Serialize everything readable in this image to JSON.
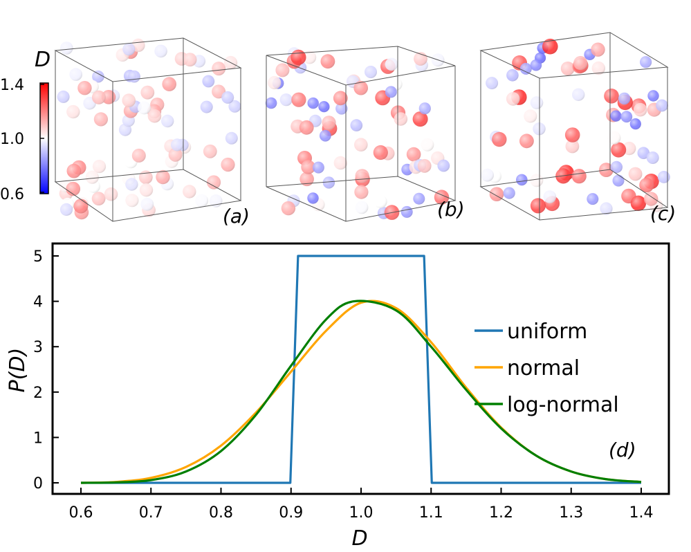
{
  "panels": {
    "a": "(a)",
    "b": "(b)",
    "c": "(c)",
    "d": "(d)"
  },
  "colorbar": {
    "title": "D",
    "ticks": [
      "1.4",
      "1.0",
      "0.6"
    ],
    "range": [
      0.6,
      1.4
    ],
    "colors": {
      "low": "#0000ff",
      "mid": "#ffffff",
      "high": "#ff0000"
    }
  },
  "chart_data": {
    "type": "line",
    "title": "",
    "xlabel": "D",
    "ylabel": "P(D)",
    "xlim": [
      0.6,
      1.4
    ],
    "ylim": [
      0,
      5
    ],
    "xticks": [
      "0.6",
      "0.7",
      "0.8",
      "0.9",
      "1.0",
      "1.1",
      "1.2",
      "1.3",
      "1.4"
    ],
    "yticks": [
      "0",
      "1",
      "2",
      "3",
      "4",
      "5"
    ],
    "legend_position": "right",
    "series": [
      {
        "name": "uniform",
        "color": "#1f77b4",
        "x": [
          0.6,
          0.899,
          0.91,
          1.09,
          1.101,
          1.4
        ],
        "y": [
          0,
          0,
          5,
          5,
          0,
          0
        ]
      },
      {
        "name": "normal",
        "color": "#ffa500",
        "x": [
          0.6,
          0.65,
          0.7,
          0.75,
          0.8,
          0.85,
          0.9,
          0.95,
          1.0,
          1.05,
          1.1,
          1.15,
          1.2,
          1.25,
          1.3,
          1.35,
          1.4
        ],
        "y": [
          0.0,
          0.02,
          0.11,
          0.35,
          0.82,
          1.55,
          2.45,
          3.35,
          3.97,
          3.85,
          3.1,
          2.1,
          1.22,
          0.6,
          0.25,
          0.08,
          0.02
        ]
      },
      {
        "name": "log-normal",
        "color": "#007f00",
        "x": [
          0.6,
          0.65,
          0.7,
          0.75,
          0.8,
          0.85,
          0.9,
          0.95,
          0.99,
          1.05,
          1.1,
          1.15,
          1.2,
          1.25,
          1.3,
          1.35,
          1.4
        ],
        "y": [
          0.0,
          0.01,
          0.06,
          0.25,
          0.7,
          1.5,
          2.58,
          3.6,
          4.0,
          3.8,
          3.0,
          2.05,
          1.2,
          0.6,
          0.25,
          0.08,
          0.02
        ]
      }
    ]
  },
  "spheres": {
    "a": [
      0.98,
      1.05,
      1.12,
      0.92,
      1.18,
      1.02,
      0.85,
      1.1,
      1.22,
      0.95,
      1.08,
      1.0,
      0.88,
      1.15,
      1.03,
      0.97,
      1.2,
      0.9,
      1.06,
      1.13,
      0.93,
      1.01,
      1.17,
      0.86,
      1.09,
      1.04,
      0.99,
      1.14,
      0.91,
      1.07,
      1.19,
      0.96,
      1.02,
      1.11,
      0.89,
      1.16,
      1.0,
      0.94,
      1.08,
      1.21,
      0.87,
      1.05,
      1.12,
      0.98,
      1.03,
      1.18,
      0.92,
      1.1,
      0.95,
      1.06,
      1.14,
      0.9,
      1.01,
      1.09,
      1.23,
      0.96,
      1.04,
      0.88,
      1.15,
      1.0,
      1.07,
      0.93,
      1.12,
      1.02,
      0.97,
      1.17,
      0.91,
      1.08,
      1.05,
      0.99,
      1.2,
      0.94,
      1.11,
      1.03,
      0.89,
      1.13,
      1.06,
      0.98,
      1.16,
      0.92
    ],
    "b": [
      1.05,
      0.78,
      1.28,
      0.92,
      1.15,
      0.7,
      1.22,
      1.0,
      0.85,
      1.35,
      1.1,
      0.95,
      0.75,
      1.25,
      1.02,
      0.88,
      1.18,
      0.72,
      1.3,
      1.08,
      0.93,
      1.2,
      0.8,
      1.12,
      0.98,
      1.33,
      0.76,
      1.05,
      1.24,
      0.9,
      1.15,
      0.82,
      1.27,
      1.0,
      0.87,
      1.21,
      0.74,
      1.1,
      1.32,
      0.95,
      1.06,
      0.79,
      1.19,
      1.03,
      0.91,
      1.26,
      0.83,
      1.14,
      0.97,
      1.3,
      0.77,
      1.08,
      1.22,
      0.89,
      1.16,
      1.01,
      0.73,
      1.28,
      0.94,
      1.11,
      1.36,
      0.86,
      1.04,
      1.2,
      0.8,
      1.13,
      0.99,
      1.25,
      0.84,
      1.07
    ],
    "c": [
      1.1,
      0.72,
      1.38,
      0.95,
      1.2,
      0.68,
      1.3,
      1.02,
      0.82,
      1.42,
      1.15,
      0.9,
      0.7,
      1.33,
      1.0,
      0.85,
      1.25,
      0.75,
      1.4,
      1.08,
      0.92,
      1.28,
      0.78,
      1.18,
      0.97,
      1.36,
      0.73,
      1.05,
      1.31,
      0.88,
      1.22,
      0.8,
      1.35,
      1.0,
      0.86,
      1.27,
      0.71,
      1.12,
      1.39,
      0.94,
      1.06,
      0.77,
      1.24,
      1.03,
      0.89,
      1.34,
      0.81,
      1.17,
      0.96,
      1.37,
      0.74,
      1.09,
      1.29,
      0.87,
      1.21,
      1.01,
      0.69,
      1.32,
      0.93,
      1.14,
      1.41,
      0.84,
      1.04,
      1.26,
      0.79,
      1.16,
      0.98,
      1.3,
      0.83,
      1.07
    ]
  }
}
